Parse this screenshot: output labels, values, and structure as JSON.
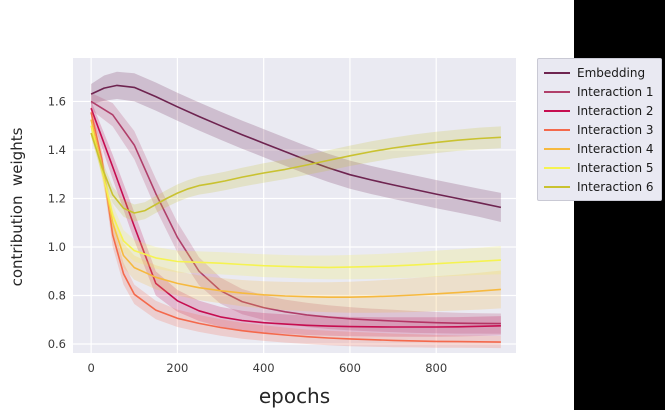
{
  "panel": {
    "right_black_color": "#000000",
    "figure_background": "#ffffff"
  },
  "chart_data": {
    "type": "line",
    "title": "",
    "xlabel": "epochs",
    "ylabel": "contribution  weights",
    "xlim": [
      -42,
      985
    ],
    "ylim": [
      0.563,
      1.779
    ],
    "x_ticks": [
      0,
      200,
      400,
      600,
      800
    ],
    "y_ticks": [
      0.6,
      0.8,
      1.0,
      1.2,
      1.4,
      1.6
    ],
    "grid": true,
    "axes_background": "#eaeaf2",
    "grid_color": "#ffffff",
    "tick_color": "#3a3a3a",
    "band_alpha": 0.22,
    "legend_position": "outside-right",
    "series": [
      {
        "name": "Embedding",
        "color": "#6e2450",
        "x": [
          0,
          30,
          60,
          100,
          150,
          200,
          250,
          300,
          350,
          400,
          450,
          500,
          550,
          600,
          650,
          700,
          750,
          800,
          850,
          900,
          950
        ],
        "y": [
          1.63,
          1.655,
          1.666,
          1.658,
          1.62,
          1.578,
          1.538,
          1.5,
          1.463,
          1.428,
          1.393,
          1.358,
          1.326,
          1.298,
          1.276,
          1.256,
          1.237,
          1.218,
          1.2,
          1.182,
          1.163
        ],
        "band_halfwidth": [
          0.042,
          0.052,
          0.056,
          0.058,
          0.058,
          0.058,
          0.058,
          0.058,
          0.058,
          0.058,
          0.058,
          0.058,
          0.058,
          0.058,
          0.058,
          0.058,
          0.058,
          0.058,
          0.058,
          0.058,
          0.06
        ]
      },
      {
        "name": "Interaction 1",
        "color": "#b03f6a",
        "x": [
          0,
          50,
          100,
          150,
          200,
          250,
          300,
          350,
          400,
          450,
          500,
          550,
          600,
          650,
          700,
          750,
          800,
          850,
          900,
          950
        ],
        "y": [
          1.6,
          1.545,
          1.42,
          1.22,
          1.04,
          0.9,
          0.82,
          0.775,
          0.75,
          0.733,
          0.72,
          0.711,
          0.704,
          0.699,
          0.695,
          0.691,
          0.688,
          0.686,
          0.685,
          0.684
        ],
        "band_halfwidth": [
          0.035,
          0.048,
          0.058,
          0.062,
          0.062,
          0.058,
          0.054,
          0.052,
          0.051,
          0.05,
          0.05,
          0.049,
          0.048,
          0.047,
          0.046,
          0.045,
          0.044,
          0.043,
          0.042,
          0.042
        ]
      },
      {
        "name": "Interaction 2",
        "color": "#c60d50",
        "x": [
          0,
          50,
          100,
          150,
          200,
          250,
          300,
          350,
          400,
          450,
          500,
          550,
          600,
          650,
          700,
          750,
          800,
          850,
          900,
          950
        ],
        "y": [
          1.572,
          1.33,
          1.085,
          0.85,
          0.778,
          0.737,
          0.712,
          0.697,
          0.688,
          0.682,
          0.677,
          0.674,
          0.672,
          0.671,
          0.67,
          0.67,
          0.67,
          0.671,
          0.673,
          0.675
        ],
        "band_halfwidth": [
          0.03,
          0.05,
          0.058,
          0.05,
          0.045,
          0.042,
          0.041,
          0.04,
          0.04,
          0.04,
          0.04,
          0.04,
          0.04,
          0.04,
          0.04,
          0.04,
          0.04,
          0.04,
          0.04,
          0.04
        ]
      },
      {
        "name": "Interaction 3",
        "color": "#f4694c",
        "x": [
          0,
          25,
          50,
          75,
          100,
          150,
          200,
          250,
          300,
          350,
          400,
          450,
          500,
          550,
          600,
          650,
          700,
          750,
          800,
          850,
          900,
          950
        ],
        "y": [
          1.555,
          1.36,
          1.05,
          0.89,
          0.805,
          0.74,
          0.706,
          0.685,
          0.668,
          0.655,
          0.645,
          0.637,
          0.63,
          0.625,
          0.621,
          0.618,
          0.615,
          0.613,
          0.611,
          0.61,
          0.609,
          0.608
        ],
        "band_halfwidth": [
          0.025,
          0.04,
          0.05,
          0.045,
          0.04,
          0.038,
          0.036,
          0.035,
          0.034,
          0.033,
          0.032,
          0.031,
          0.03,
          0.03,
          0.03,
          0.029,
          0.028,
          0.027,
          0.026,
          0.025,
          0.025,
          0.025
        ]
      },
      {
        "name": "Interaction 4",
        "color": "#f6b93f",
        "x": [
          0,
          25,
          50,
          75,
          100,
          150,
          200,
          250,
          300,
          350,
          400,
          450,
          500,
          550,
          600,
          650,
          700,
          750,
          800,
          850,
          900,
          950
        ],
        "y": [
          1.525,
          1.33,
          1.1,
          0.965,
          0.915,
          0.875,
          0.85,
          0.832,
          0.82,
          0.81,
          0.803,
          0.798,
          0.795,
          0.793,
          0.793,
          0.795,
          0.798,
          0.802,
          0.807,
          0.812,
          0.818,
          0.825
        ],
        "band_halfwidth": [
          0.025,
          0.04,
          0.05,
          0.05,
          0.05,
          0.05,
          0.05,
          0.051,
          0.052,
          0.054,
          0.056,
          0.058,
          0.06,
          0.062,
          0.064,
          0.066,
          0.068,
          0.07,
          0.072,
          0.074,
          0.076,
          0.078
        ]
      },
      {
        "name": "Interaction 5",
        "color": "#f5f351",
        "x": [
          0,
          25,
          50,
          75,
          100,
          150,
          200,
          250,
          300,
          350,
          400,
          450,
          500,
          550,
          600,
          650,
          700,
          750,
          800,
          850,
          900,
          950
        ],
        "y": [
          1.5,
          1.32,
          1.13,
          1.025,
          0.985,
          0.955,
          0.94,
          0.937,
          0.933,
          0.928,
          0.923,
          0.92,
          0.917,
          0.916,
          0.917,
          0.919,
          0.922,
          0.926,
          0.931,
          0.936,
          0.941,
          0.946
        ],
        "band_halfwidth": [
          0.02,
          0.035,
          0.045,
          0.045,
          0.045,
          0.045,
          0.045,
          0.045,
          0.046,
          0.046,
          0.047,
          0.047,
          0.048,
          0.049,
          0.05,
          0.051,
          0.052,
          0.053,
          0.054,
          0.055,
          0.056,
          0.058
        ]
      },
      {
        "name": "Interaction 6",
        "color": "#c9c230",
        "x": [
          0,
          25,
          50,
          75,
          100,
          125,
          150,
          175,
          200,
          225,
          250,
          280,
          310,
          350,
          400,
          450,
          500,
          550,
          600,
          650,
          700,
          750,
          800,
          850,
          900,
          950
        ],
        "y": [
          1.47,
          1.33,
          1.215,
          1.16,
          1.14,
          1.15,
          1.175,
          1.2,
          1.222,
          1.24,
          1.253,
          1.262,
          1.272,
          1.288,
          1.305,
          1.32,
          1.338,
          1.357,
          1.376,
          1.393,
          1.408,
          1.42,
          1.431,
          1.44,
          1.447,
          1.452
        ],
        "band_halfwidth": [
          0.02,
          0.03,
          0.034,
          0.035,
          0.035,
          0.035,
          0.035,
          0.035,
          0.036,
          0.036,
          0.037,
          0.038,
          0.038,
          0.039,
          0.04,
          0.04,
          0.041,
          0.042,
          0.042,
          0.043,
          0.043,
          0.044,
          0.044,
          0.044,
          0.045,
          0.045
        ]
      }
    ]
  },
  "legend": {
    "items": [
      "Embedding",
      "Interaction 1",
      "Interaction 2",
      "Interaction 3",
      "Interaction 4",
      "Interaction 5",
      "Interaction 6"
    ]
  }
}
